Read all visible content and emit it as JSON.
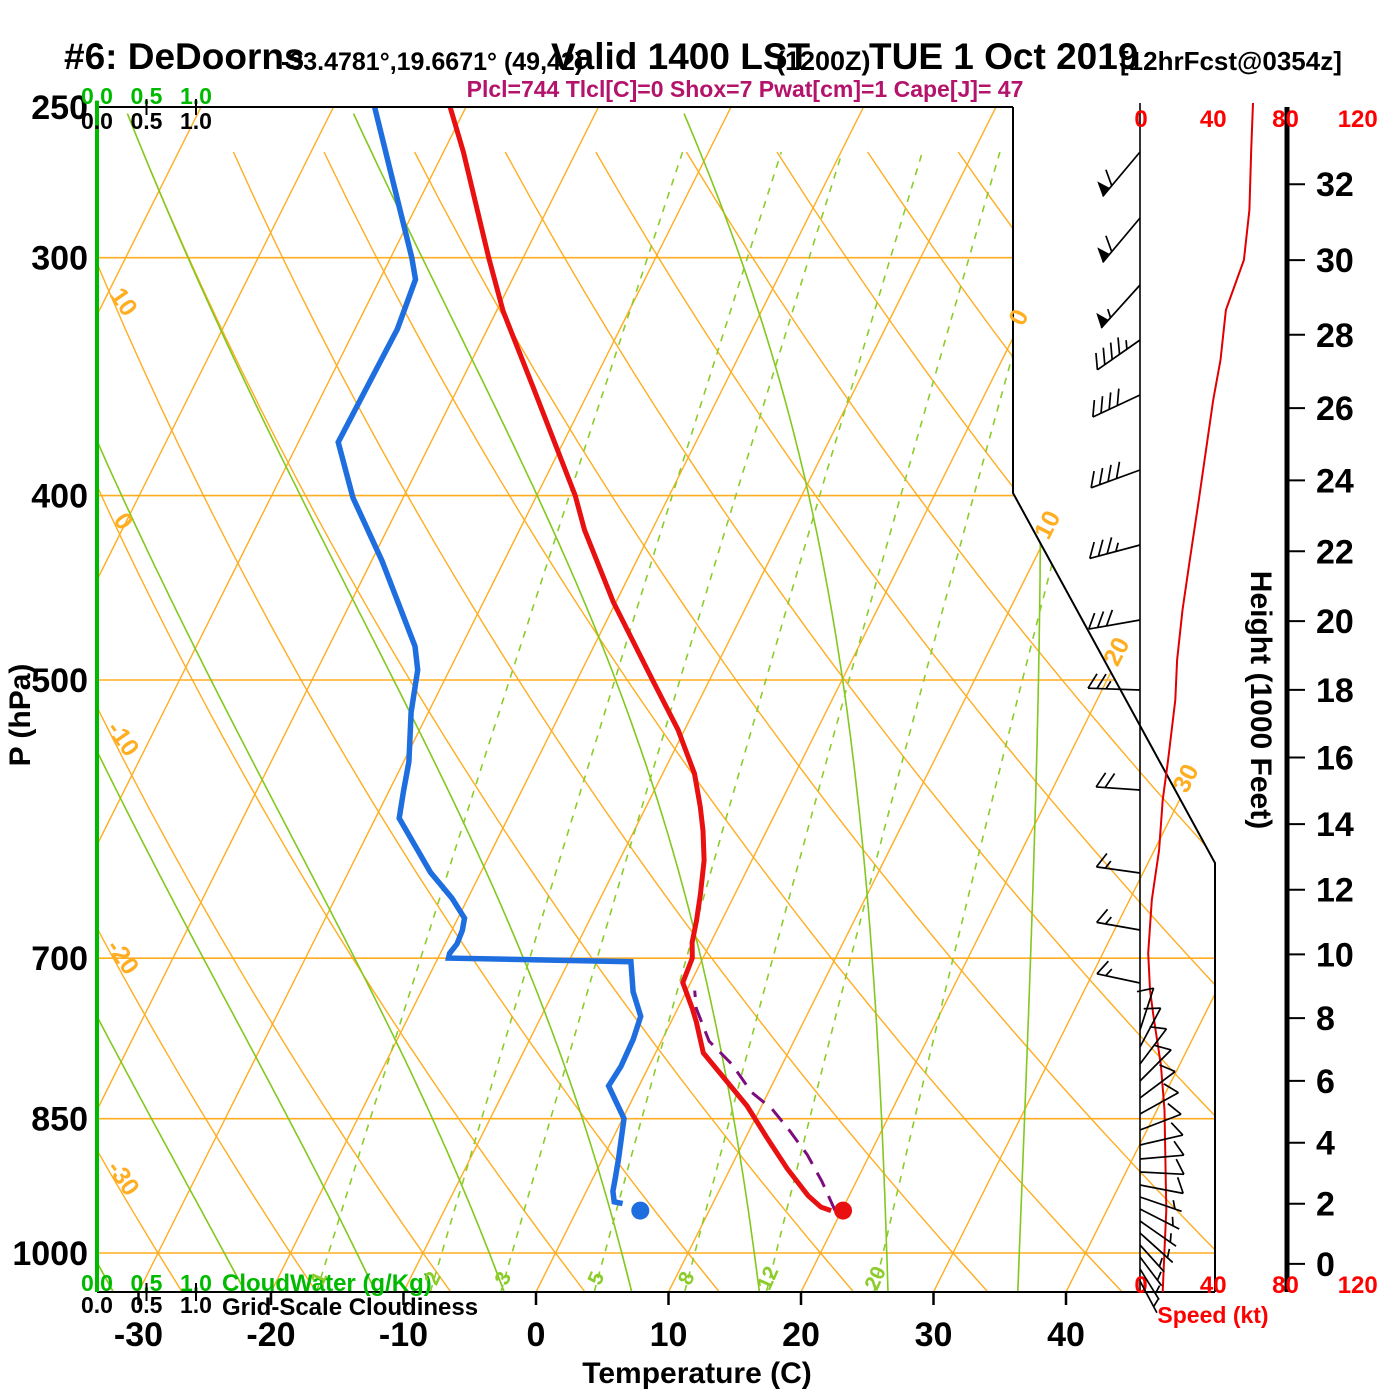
{
  "header": {
    "station": "#6: DeDoorns",
    "coords": "-33.4781°,19.6671° (49,42)",
    "valid": "Valid 1400 LST",
    "valid_z": "(1200Z)",
    "date": "TUE 1 Oct 2019",
    "fcst": "[12hrFcst@0354z]",
    "params": "Plcl=744 Tlcl[C]=0 Shox=7 Pwat[cm]=1 Cape[J]= 47"
  },
  "axes": {
    "pressure": {
      "title": "P (hPa)",
      "ticks": [
        250,
        300,
        400,
        500,
        700,
        850,
        1000
      ]
    },
    "temperature": {
      "title": "Temperature (C)",
      "ticks": [
        -30,
        -20,
        -10,
        0,
        10,
        20,
        30,
        40
      ]
    },
    "height": {
      "title": "Height (1000 Feet)",
      "ticks": [
        0,
        2,
        4,
        6,
        8,
        10,
        12,
        14,
        16,
        18,
        20,
        22,
        24,
        26,
        28,
        30,
        32
      ]
    },
    "speed": {
      "title": "Speed (kt)",
      "ticks": [
        0,
        40,
        80,
        120
      ]
    },
    "cloud": {
      "labels": [
        "0.0",
        "0.5",
        "1.0"
      ],
      "green_title": "CloudWater (g/Kg)",
      "black_title": "Grid-Scale Cloudiness"
    }
  },
  "plot_labels": {
    "dry_adiabats": [
      10,
      0,
      -10,
      -20,
      -30
    ],
    "isotherms": [
      0,
      10,
      20,
      30
    ],
    "mixing_ratios": [
      1,
      2,
      3,
      5,
      8,
      12,
      20
    ]
  },
  "grid": {
    "isotherms": {
      "min": -120,
      "max": 40,
      "step": 10
    },
    "dry_adiabats": {
      "min": -40,
      "max": 130,
      "step": 10
    },
    "moist_adiabats": [
      -35,
      -25,
      -15,
      -5,
      5,
      15,
      25,
      35
    ],
    "mixing_ratios": [
      1,
      2,
      3,
      5,
      8,
      12,
      20
    ],
    "pressure_lines": [
      300,
      400,
      500,
      700,
      850,
      1000
    ]
  },
  "chart_data": {
    "type": "line",
    "subtype": "skew-t log-p sounding",
    "title": "#6: DeDoorns Valid 1400 LST (1200Z) TUE 1 Oct 2019",
    "xlabel": "Temperature (C)",
    "ylabel": "P (hPa)",
    "x_range_c": [
      -30,
      40
    ],
    "p_range_hpa": [
      250,
      1050
    ],
    "series": [
      {
        "name": "temperature",
        "units": "hPa,C",
        "points": [
          [
            250,
            -51.2
          ],
          [
            264,
            -48.5
          ],
          [
            300,
            -42.6
          ],
          [
            320,
            -39.5
          ],
          [
            350,
            -34.5
          ],
          [
            400,
            -27.1
          ],
          [
            417,
            -25.1
          ],
          [
            455,
            -20.2
          ],
          [
            500,
            -14.3
          ],
          [
            531,
            -10.5
          ],
          [
            560,
            -7.6
          ],
          [
            583,
            -5.9
          ],
          [
            600,
            -4.8
          ],
          [
            622,
            -3.6
          ],
          [
            648,
            -2.6
          ],
          [
            669,
            -1.9
          ],
          [
            687,
            -1.4
          ],
          [
            700,
            -0.8
          ],
          [
            721,
            -0.6
          ],
          [
            744,
            1.1
          ],
          [
            756,
            1.9
          ],
          [
            785,
            3.6
          ],
          [
            813,
            6.5
          ],
          [
            837,
            8.9
          ],
          [
            871,
            11.7
          ],
          [
            903,
            14.3
          ],
          [
            933,
            16.9
          ],
          [
            946,
            18.3
          ],
          [
            950,
            19.2
          ]
        ]
      },
      {
        "name": "dewpoint",
        "units": "hPa,C",
        "points": [
          [
            250,
            -56.9
          ],
          [
            300,
            -48.4
          ],
          [
            308,
            -47.3
          ],
          [
            327,
            -46.8
          ],
          [
            375,
            -47.0
          ],
          [
            401,
            -43.8
          ],
          [
            433,
            -39.2
          ],
          [
            480,
            -33.5
          ],
          [
            494,
            -32.4
          ],
          [
            520,
            -31.3
          ],
          [
            552,
            -29.6
          ],
          [
            572,
            -28.9
          ],
          [
            591,
            -28.2
          ],
          [
            631,
            -23.8
          ],
          [
            651,
            -21.2
          ],
          [
            667,
            -19.5
          ],
          [
            677,
            -19.2
          ],
          [
            688,
            -19.1
          ],
          [
            696,
            -19.3
          ],
          [
            700,
            -19.2
          ],
          [
            703,
            -5.3
          ],
          [
            729,
            -4.0
          ],
          [
            751,
            -2.5
          ],
          [
            772,
            -2.2
          ],
          [
            798,
            -2.1
          ],
          [
            817,
            -2.3
          ],
          [
            850,
            0.1
          ],
          [
            892,
            1.2
          ],
          [
            914,
            1.7
          ],
          [
            928,
            2.0
          ],
          [
            940,
            2.5
          ],
          [
            942,
            3.2
          ]
        ]
      },
      {
        "name": "parcel",
        "units": "hPa,C",
        "dashed": true,
        "points": [
          [
            950,
            19.5
          ],
          [
            917,
            17.4
          ],
          [
            888,
            15.3
          ],
          [
            863,
            13.1
          ],
          [
            840,
            10.9
          ],
          [
            823,
            8.7
          ],
          [
            796,
            6.2
          ],
          [
            774,
            3.6
          ],
          [
            744,
            1.4
          ],
          [
            728,
            0.6
          ]
        ]
      },
      {
        "name": "wind_speed",
        "units": "y_px,kt",
        "points": [
          [
            103,
            62
          ],
          [
            150,
            61
          ],
          [
            210,
            60
          ],
          [
            260,
            57
          ],
          [
            310,
            47
          ],
          [
            360,
            44
          ],
          [
            400,
            40
          ],
          [
            450,
            36
          ],
          [
            500,
            32
          ],
          [
            560,
            27
          ],
          [
            610,
            23
          ],
          [
            660,
            20
          ],
          [
            700,
            19
          ],
          [
            760,
            15
          ],
          [
            800,
            12
          ],
          [
            850,
            10
          ],
          [
            900,
            6
          ],
          [
            953,
            4
          ],
          [
            990,
            5
          ],
          [
            1017,
            7
          ],
          [
            1065,
            11
          ],
          [
            1110,
            13
          ],
          [
            1160,
            13.5
          ],
          [
            1210,
            14
          ],
          [
            1250,
            13
          ],
          [
            1292,
            12
          ]
        ]
      }
    ],
    "surface_markers": {
      "temperature_dot": [
        950,
        20.1
      ],
      "dewpoint_dot": [
        950,
        4.8
      ]
    },
    "wind_barbs": [
      [
        152,
        230,
        60
      ],
      [
        218,
        230,
        60
      ],
      [
        285,
        228,
        55
      ],
      [
        340,
        215,
        45
      ],
      [
        395,
        205,
        40
      ],
      [
        470,
        200,
        40
      ],
      [
        545,
        195,
        35
      ],
      [
        620,
        190,
        30
      ],
      [
        690,
        178,
        25
      ],
      [
        790,
        176,
        20
      ],
      [
        873,
        172,
        15
      ],
      [
        930,
        170,
        15
      ],
      [
        983,
        168,
        15
      ],
      [
        1030,
        72,
        10
      ],
      [
        1047,
        62,
        10
      ],
      [
        1064,
        53,
        10
      ],
      [
        1081,
        45,
        10
      ],
      [
        1098,
        37,
        10
      ],
      [
        1114,
        29,
        10
      ],
      [
        1130,
        21,
        10
      ],
      [
        1145,
        13,
        10
      ],
      [
        1159,
        5,
        10
      ],
      [
        1172,
        -3,
        10
      ],
      [
        1185,
        -11,
        10
      ],
      [
        1197,
        -19,
        8
      ],
      [
        1209,
        -27,
        8
      ],
      [
        1221,
        -35,
        8
      ],
      [
        1233,
        -42,
        8
      ],
      [
        1245,
        -48,
        8
      ],
      [
        1257,
        -53,
        8
      ],
      [
        1269,
        -58,
        8
      ],
      [
        1281,
        -62,
        8
      ]
    ]
  },
  "colors": {
    "orange": "#ffad21",
    "green_axis": "#00ba00",
    "moist": "#82c81e",
    "mixing": "#8ccc2a",
    "temperature": "#e81010",
    "dewpoint": "#1e6ee0",
    "parcel": "#7d0d7d",
    "speed_curve": "#e00000",
    "red_text": "#ff0000",
    "params_text": "#b4136b",
    "black": "#000000"
  }
}
